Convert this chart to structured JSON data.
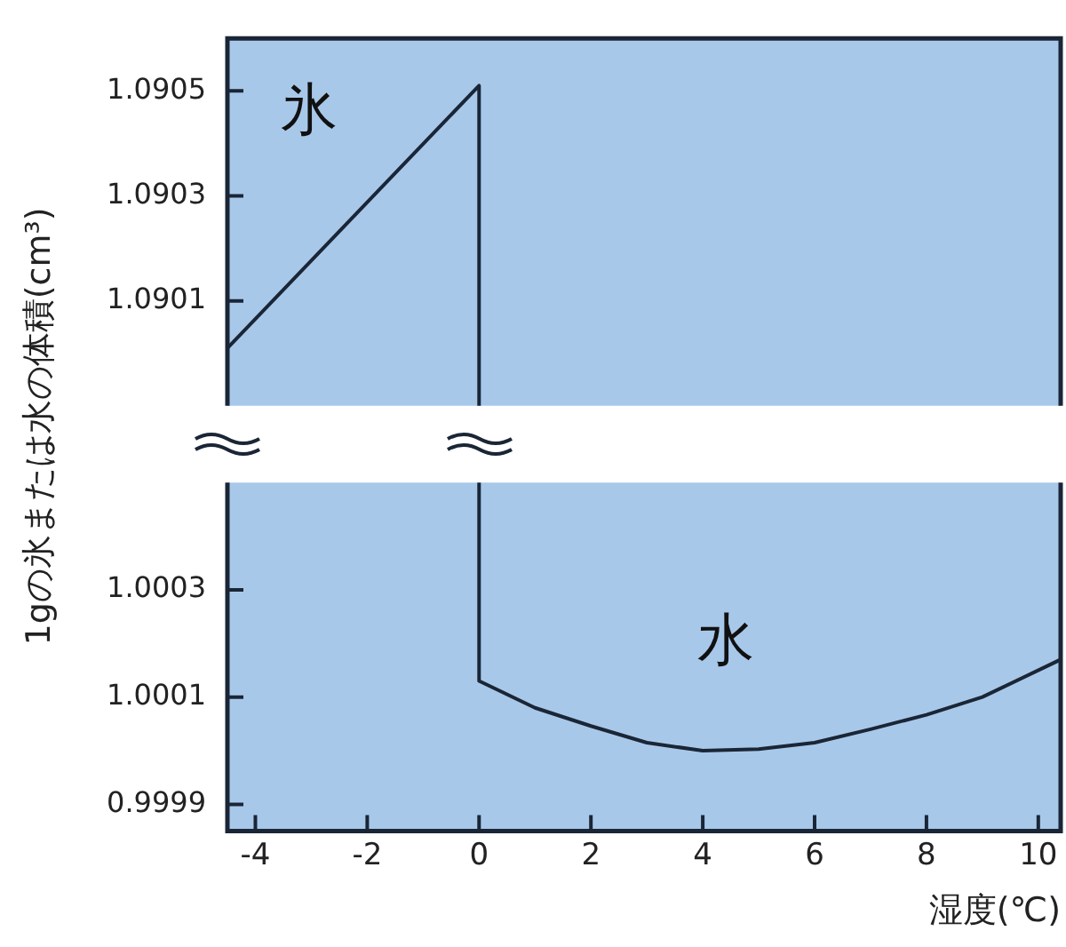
{
  "chart_data": [
    {
      "type": "line",
      "ylabel": "1gの氷または水の体積(cm³)",
      "xlim": [
        -4.5,
        10.4
      ],
      "xticks": [
        -4,
        -2,
        0,
        2,
        4,
        6,
        8,
        10
      ],
      "ylim": [
        1.0899,
        1.0906
      ],
      "yticks": [
        1.0901,
        1.0903,
        1.0905
      ],
      "tick_labels": "y",
      "grid": false,
      "legend": false,
      "marker": "none",
      "line_style": "solid",
      "series": [
        {
          "name": "氷",
          "color": "#1a2636",
          "x": [
            -4.5,
            0,
            0
          ],
          "values": [
            1.09001,
            1.09051,
            1.0899
          ]
        }
      ]
    },
    {
      "type": "line",
      "xlabel": "湿度(℃)",
      "xlim": [
        -4.5,
        10.4
      ],
      "xticks": [
        -4,
        -2,
        0,
        2,
        4,
        6,
        8,
        10
      ],
      "ylim": [
        0.99985,
        1.0005
      ],
      "yticks": [
        0.9999,
        1.0001,
        1.0003
      ],
      "grid": false,
      "legend": false,
      "marker": "none",
      "line_style": "solid",
      "series": [
        {
          "name": "水",
          "color": "#1a2636",
          "x": [
            0,
            0,
            1,
            2,
            3,
            4,
            5,
            6,
            7,
            8,
            9,
            10.4
          ],
          "values": [
            1.0005,
            1.00013,
            1.00008,
            1.000046,
            1.000015,
            1.0,
            1.000003,
            1.000015,
            1.00004,
            1.000067,
            1.0001,
            1.00017
          ]
        }
      ]
    }
  ]
}
